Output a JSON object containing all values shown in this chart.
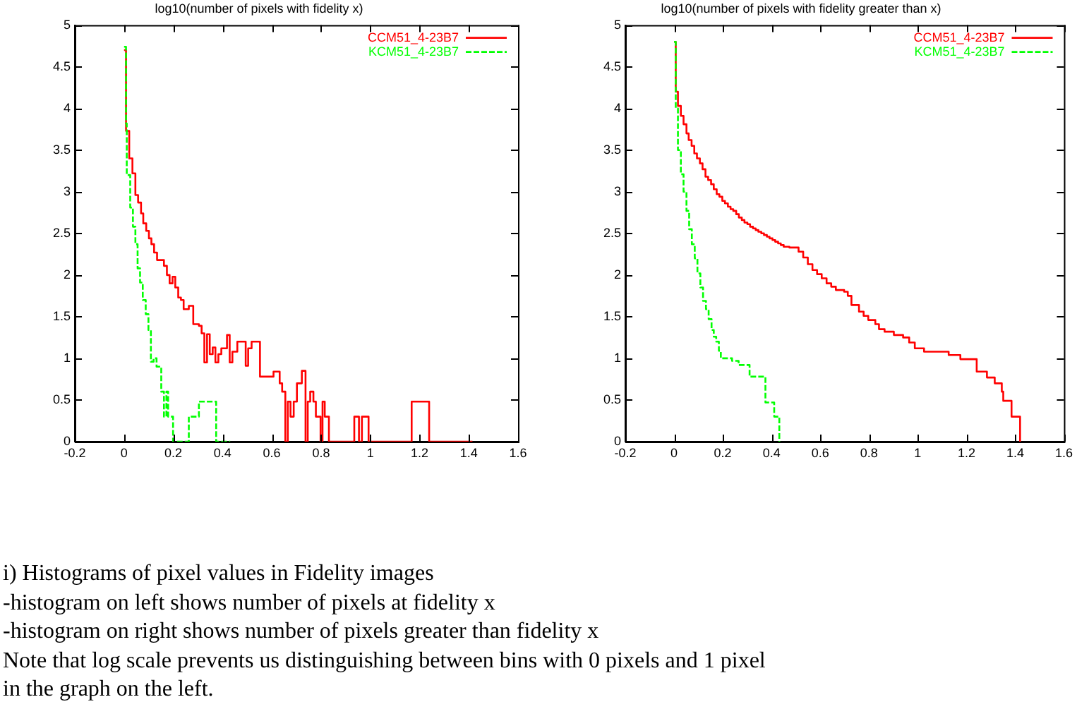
{
  "chart_data": [
    {
      "type": "step",
      "title": "log10(number of pixels with fidelity x)",
      "xlim": [
        -0.2,
        1.6
      ],
      "ylim": [
        0,
        5
      ],
      "xticks": [
        -0.2,
        0,
        0.2,
        0.4,
        0.6,
        0.8,
        1,
        1.2,
        1.4,
        1.6
      ],
      "yticks": [
        0,
        0.5,
        1,
        1.5,
        2,
        2.5,
        3,
        3.5,
        4,
        4.5,
        5
      ],
      "legend": "top right",
      "marker": "none",
      "series": [
        {
          "name": "CCM51_4-23B7",
          "color": "#ff0000",
          "line_style": "solid",
          "x": [
            0,
            0.008,
            0.021,
            0.034,
            0.046,
            0.057,
            0.069,
            0.078,
            0.09,
            0.101,
            0.111,
            0.122,
            0.134,
            0.162,
            0.174,
            0.185,
            0.197,
            0.208,
            0.22,
            0.231,
            0.242,
            0.263,
            0.281,
            0.304,
            0.315,
            0.326,
            0.337,
            0.348,
            0.36,
            0.371,
            0.383,
            0.395,
            0.418,
            0.429,
            0.44,
            0.46,
            0.494,
            0.504,
            0.518,
            0.552,
            0.607,
            0.632,
            0.642,
            0.655,
            0.665,
            0.676,
            0.689,
            0.702,
            0.722,
            0.737,
            0.746,
            0.756,
            0.769,
            0.779,
            0.798,
            0.806,
            0.815,
            0.832,
            0.935,
            0.954,
            0.966,
            0.993,
            1.168,
            1.239,
            1.415
          ],
          "values": [
            4.7,
            3.73,
            3.4,
            3.22,
            2.96,
            2.87,
            2.74,
            2.62,
            2.53,
            2.44,
            2.37,
            2.27,
            2.18,
            2.11,
            2.0,
            1.9,
            1.98,
            1.85,
            1.73,
            1.7,
            1.59,
            1.63,
            1.41,
            1.39,
            1.3,
            0.95,
            1.29,
            1.05,
            1.13,
            0.95,
            1.05,
            1.12,
            1.28,
            0.95,
            1.08,
            1.2,
            0.91,
            1.12,
            1.2,
            0.78,
            0.84,
            0.7,
            0.6,
            0,
            0.48,
            0.3,
            0.48,
            0.7,
            0.85,
            0,
            0.48,
            0.6,
            0.48,
            0.3,
            0,
            0.48,
            0.3,
            0,
            0.3,
            0,
            0.3,
            0,
            0.48,
            0,
            0
          ]
        },
        {
          "name": "KCM51_4-23B7",
          "color": "#00ff00",
          "line_style": "dashed",
          "x": [
            0,
            0.008,
            0.011,
            0.025,
            0.036,
            0.046,
            0.055,
            0.065,
            0.076,
            0.088,
            0.099,
            0.109,
            0.12,
            0.132,
            0.151,
            0.162,
            0.172,
            0.179,
            0.199,
            0.263,
            0.304,
            0.374,
            0.431
          ],
          "values": [
            4.74,
            3.82,
            3.2,
            2.81,
            2.58,
            2.37,
            2.08,
            1.91,
            1.7,
            1.53,
            1.34,
            0.96,
            1.0,
            0.9,
            0.6,
            0.3,
            0.6,
            0.3,
            0,
            0.3,
            0.48,
            0,
            0
          ]
        }
      ]
    },
    {
      "type": "step",
      "title": "log10(number of pixels with fidelity greater than x)",
      "xlim": [
        -0.2,
        1.6
      ],
      "ylim": [
        0,
        5
      ],
      "xticks": [
        -0.2,
        0,
        0.2,
        0.4,
        0.6,
        0.8,
        1,
        1.2,
        1.4,
        1.6
      ],
      "yticks": [
        0,
        0.5,
        1,
        1.5,
        2,
        2.5,
        3,
        3.5,
        4,
        4.5,
        5
      ],
      "legend": "top right",
      "marker": "none",
      "series": [
        {
          "name": "CCM51_4-23B7",
          "color": "#ff0000",
          "line_style": "solid",
          "x": [
            0,
            0.007,
            0.016,
            0.028,
            0.039,
            0.051,
            0.06,
            0.072,
            0.083,
            0.094,
            0.106,
            0.117,
            0.129,
            0.14,
            0.152,
            0.163,
            0.175,
            0.186,
            0.198,
            0.209,
            0.221,
            0.232,
            0.243,
            0.255,
            0.266,
            0.278,
            0.289,
            0.301,
            0.312,
            0.324,
            0.335,
            0.346,
            0.358,
            0.369,
            0.381,
            0.392,
            0.404,
            0.415,
            0.427,
            0.438,
            0.45,
            0.473,
            0.511,
            0.53,
            0.549,
            0.568,
            0.587,
            0.606,
            0.626,
            0.645,
            0.664,
            0.698,
            0.713,
            0.728,
            0.759,
            0.778,
            0.797,
            0.826,
            0.841,
            0.864,
            0.902,
            0.94,
            0.965,
            0.988,
            1.026,
            1.127,
            1.175,
            1.242,
            1.284,
            1.316,
            1.345,
            1.351,
            1.385,
            1.42
          ],
          "values": [
            4.8,
            4.2,
            4.03,
            3.91,
            3.81,
            3.7,
            3.62,
            3.55,
            3.46,
            3.4,
            3.34,
            3.27,
            3.18,
            3.14,
            3.09,
            3.03,
            2.97,
            2.94,
            2.89,
            2.86,
            2.82,
            2.79,
            2.77,
            2.73,
            2.69,
            2.66,
            2.63,
            2.61,
            2.58,
            2.56,
            2.54,
            2.52,
            2.5,
            2.48,
            2.46,
            2.44,
            2.42,
            2.4,
            2.38,
            2.36,
            2.34,
            2.33,
            2.28,
            2.21,
            2.13,
            2.06,
            2.01,
            1.96,
            1.9,
            1.86,
            1.82,
            1.8,
            1.75,
            1.64,
            1.56,
            1.51,
            1.46,
            1.41,
            1.35,
            1.32,
            1.28,
            1.25,
            1.19,
            1.12,
            1.08,
            1.04,
            0.99,
            0.84,
            0.77,
            0.7,
            0.6,
            0.49,
            0.3,
            0
          ]
        },
        {
          "name": "KCM51_4-23B7",
          "color": "#00ff00",
          "line_style": "dashed",
          "x": [
            0,
            0.007,
            0.016,
            0.028,
            0.039,
            0.051,
            0.062,
            0.073,
            0.085,
            0.096,
            0.108,
            0.119,
            0.131,
            0.142,
            0.154,
            0.163,
            0.173,
            0.184,
            0.192,
            0.238,
            0.265,
            0.31,
            0.375,
            0.411,
            0.432
          ],
          "values": [
            4.8,
            4.0,
            3.5,
            3.21,
            3.0,
            2.77,
            2.55,
            2.37,
            2.2,
            2.02,
            1.85,
            1.69,
            1.59,
            1.47,
            1.34,
            1.26,
            1.2,
            1.09,
            1.0,
            0.97,
            0.92,
            0.78,
            0.47,
            0.3,
            0
          ]
        }
      ],
      "annotations": [
        "i) Histograms of pixel values in Fidelity images",
        "-histogram on left shows number of pixels at fidelity x",
        "-histogram on right shows number of pixels greater than fidelity x",
        "Note that log scale prevents us distinguishing between bins with 0 pixels and 1 pixel",
        "in the graph on the left."
      ]
    }
  ]
}
